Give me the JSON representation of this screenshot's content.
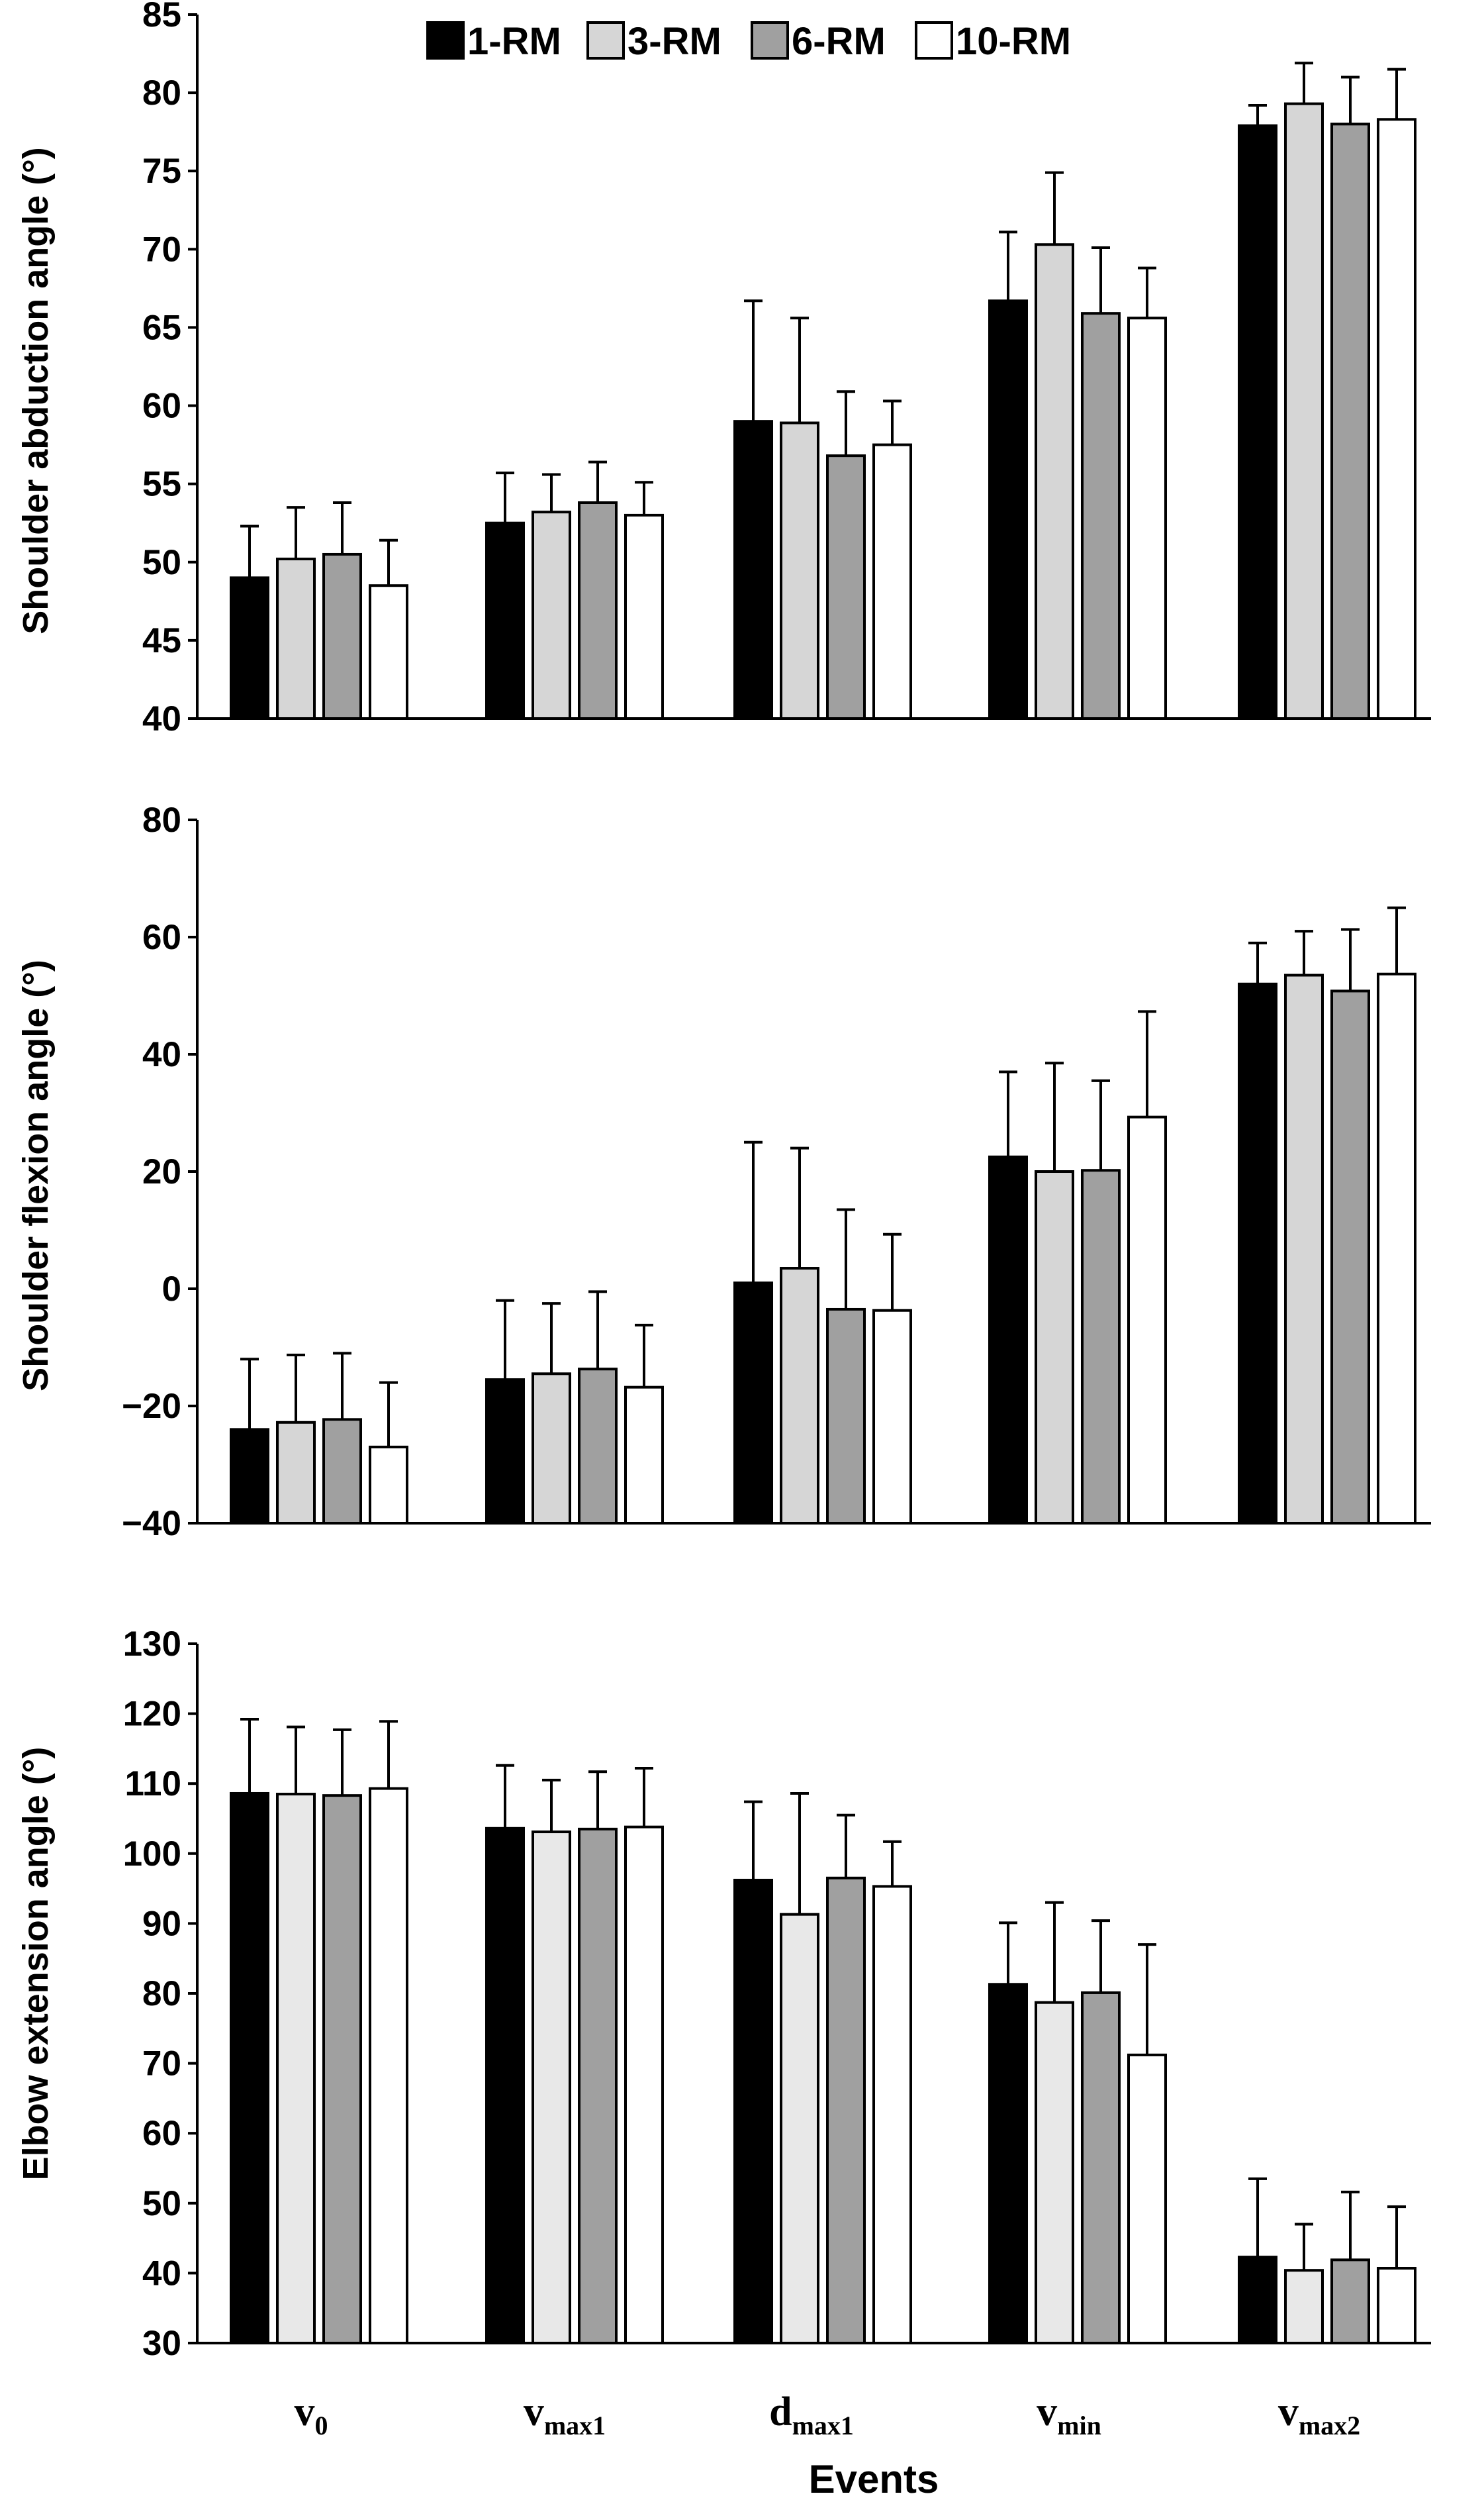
{
  "chart_data": [
    {
      "type": "bar",
      "ylabel": "Shoulder abduction angle (°)",
      "ylim": [
        40,
        85
      ],
      "yticks": [
        40,
        45,
        50,
        55,
        60,
        65,
        70,
        75,
        80,
        85
      ],
      "categories": [
        "v0",
        "vmax1",
        "dmax1",
        "vmin",
        "vmax2"
      ],
      "series": [
        {
          "name": "1-RM",
          "values": [
            49.0,
            52.5,
            59.0,
            66.7,
            77.9
          ],
          "errors": [
            3.3,
            3.2,
            7.7,
            4.4,
            1.3
          ]
        },
        {
          "name": "3-RM",
          "values": [
            50.2,
            53.2,
            58.9,
            70.3,
            79.3
          ],
          "errors": [
            3.3,
            2.4,
            6.7,
            4.6,
            2.6
          ]
        },
        {
          "name": "6-RM",
          "values": [
            50.5,
            53.8,
            56.8,
            65.9,
            78.0
          ],
          "errors": [
            3.3,
            2.6,
            4.1,
            4.2,
            3.0
          ]
        },
        {
          "name": "10-RM",
          "values": [
            48.5,
            53.0,
            57.5,
            65.6,
            78.3
          ],
          "errors": [
            2.9,
            2.1,
            2.8,
            3.2,
            3.2
          ]
        }
      ]
    },
    {
      "type": "bar",
      "ylabel": "Shoulder flexion angle (°)",
      "ylim": [
        -40,
        80
      ],
      "yticks": [
        -40,
        -20,
        0,
        20,
        40,
        60,
        80
      ],
      "categories": [
        "v0",
        "vmax1",
        "dmax1",
        "vmin",
        "vmax2"
      ],
      "series": [
        {
          "name": "1-RM",
          "values": [
            -24.0,
            -15.5,
            1.0,
            22.5,
            52.0
          ],
          "errors": [
            12.0,
            13.5,
            24.0,
            14.5,
            7.0
          ]
        },
        {
          "name": "3-RM",
          "values": [
            -22.8,
            -14.5,
            3.5,
            20.0,
            53.5
          ],
          "errors": [
            11.5,
            12.0,
            20.5,
            18.5,
            7.5
          ]
        },
        {
          "name": "6-RM",
          "values": [
            -22.3,
            -13.7,
            -3.5,
            20.2,
            50.8
          ],
          "errors": [
            11.3,
            13.2,
            17.0,
            15.3,
            10.5
          ]
        },
        {
          "name": "10-RM",
          "values": [
            -27.0,
            -16.8,
            -3.7,
            29.3,
            53.7
          ],
          "errors": [
            11.0,
            10.6,
            13.0,
            18.0,
            11.3
          ]
        }
      ]
    },
    {
      "type": "bar",
      "ylabel": "Elbow extension angle (°)",
      "xlabel": "Events",
      "ylim": [
        30,
        130
      ],
      "yticks": [
        30,
        40,
        50,
        60,
        70,
        80,
        90,
        100,
        110,
        120,
        130
      ],
      "categories": [
        "v0",
        "vmax1",
        "dmax1",
        "vmin",
        "vmax2"
      ],
      "series": [
        {
          "name": "1-RM",
          "values": [
            108.6,
            103.6,
            96.2,
            81.3,
            42.3
          ],
          "errors": [
            10.6,
            9.0,
            11.2,
            8.8,
            11.2
          ]
        },
        {
          "name": "3-RM",
          "values": [
            108.5,
            103.1,
            91.3,
            78.7,
            40.4
          ],
          "errors": [
            9.6,
            7.4,
            17.3,
            14.3,
            6.6
          ]
        },
        {
          "name": "6-RM",
          "values": [
            108.3,
            103.5,
            96.5,
            80.1,
            41.9
          ],
          "errors": [
            9.4,
            8.2,
            9.0,
            10.3,
            9.7
          ]
        },
        {
          "name": "10-RM",
          "values": [
            109.3,
            103.8,
            95.3,
            71.2,
            40.7
          ],
          "errors": [
            9.6,
            8.4,
            6.4,
            15.8,
            8.8
          ]
        }
      ]
    }
  ],
  "legend": {
    "placement": "top-center",
    "items": [
      {
        "label": "1-RM",
        "color": "#000000"
      },
      {
        "label": "3-RM",
        "color": "#d6d6d6"
      },
      {
        "label": "6-RM",
        "color": "#a0a0a0"
      },
      {
        "label": "10-RM",
        "color": "#ffffff"
      }
    ]
  },
  "event_labels": [
    {
      "main": "v",
      "sub": "0"
    },
    {
      "main": "v",
      "sub": "max1"
    },
    {
      "main": "d",
      "sub": "max1"
    },
    {
      "main": "v",
      "sub": "min"
    },
    {
      "main": "v",
      "sub": "max2"
    }
  ],
  "colors": {
    "series": [
      "#000000",
      "#d6d6d6",
      "#a0a0a0",
      "#ffffff"
    ],
    "series_panel3": [
      "#000000",
      "#e8e8e8",
      "#a0a0a0",
      "#ffffff"
    ],
    "axis": "#000000"
  }
}
